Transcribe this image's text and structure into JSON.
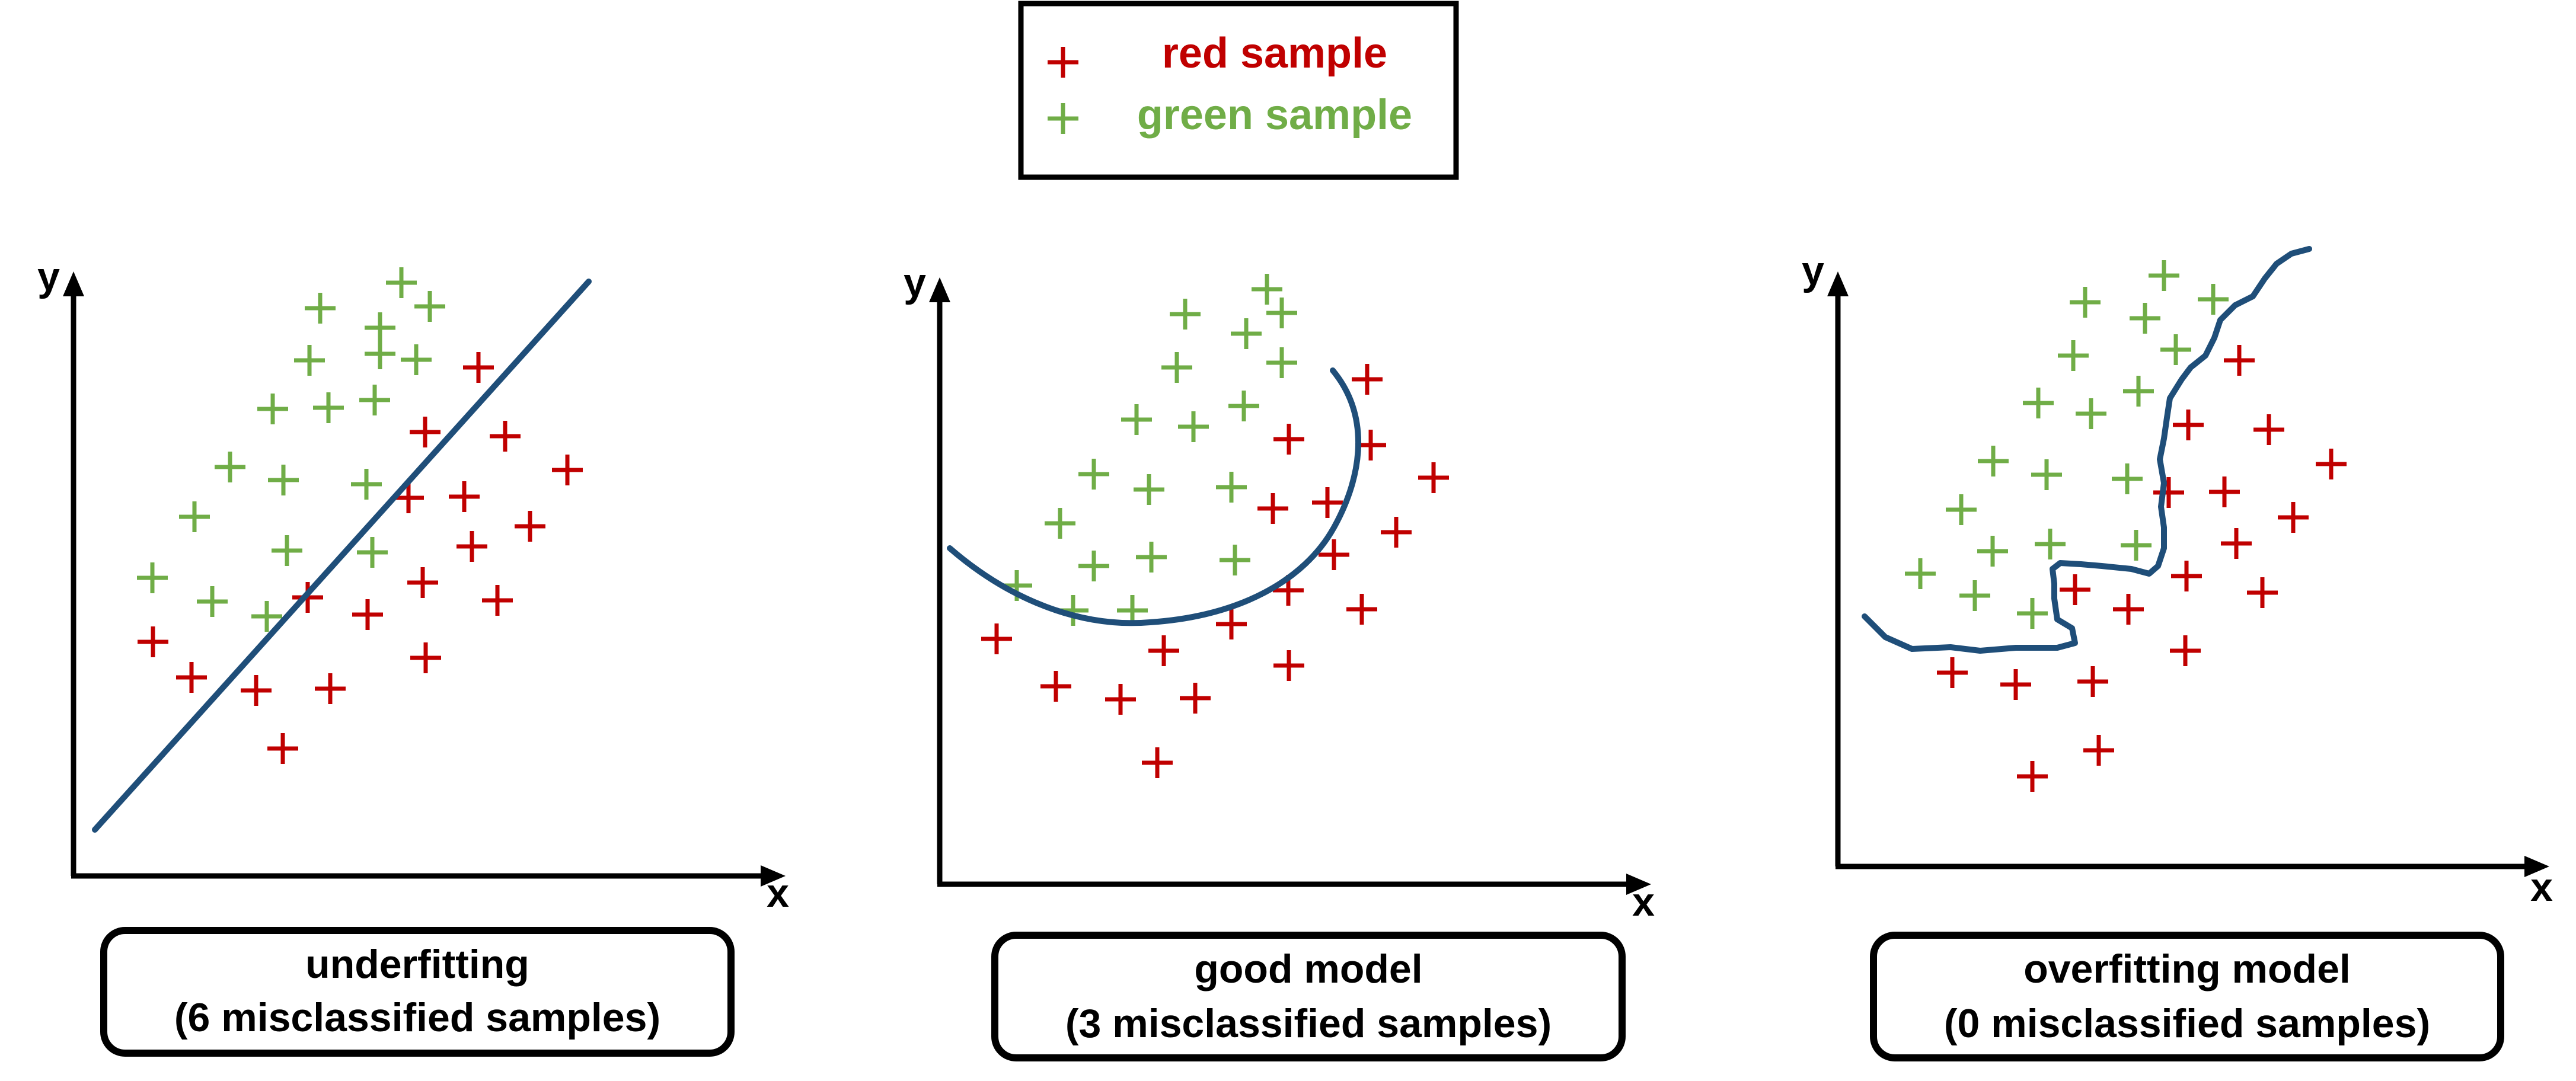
{
  "colors": {
    "red": "#c00000",
    "green": "#70ad47",
    "boundary": "#1f4e79",
    "axis": "#000000"
  },
  "legend": {
    "items": [
      {
        "label": "red sample",
        "color": "red"
      },
      {
        "label": "green sample",
        "color": "green"
      }
    ]
  },
  "panels": [
    {
      "id": "underfitting",
      "caption_line1": "underfitting",
      "caption_line2": "(6 misclassified samples)",
      "x_label": "x",
      "y_label": "y",
      "boundary_type": "linear"
    },
    {
      "id": "good-model",
      "caption_line1": "good model",
      "caption_line2": "(3 misclassified samples)",
      "x_label": "x",
      "y_label": "y",
      "boundary_type": "curved"
    },
    {
      "id": "overfitting",
      "caption_line1": "overfitting model",
      "caption_line2": "(0 misclassified samples)",
      "x_label": "x",
      "y_label": "y",
      "boundary_type": "jagged"
    }
  ]
}
